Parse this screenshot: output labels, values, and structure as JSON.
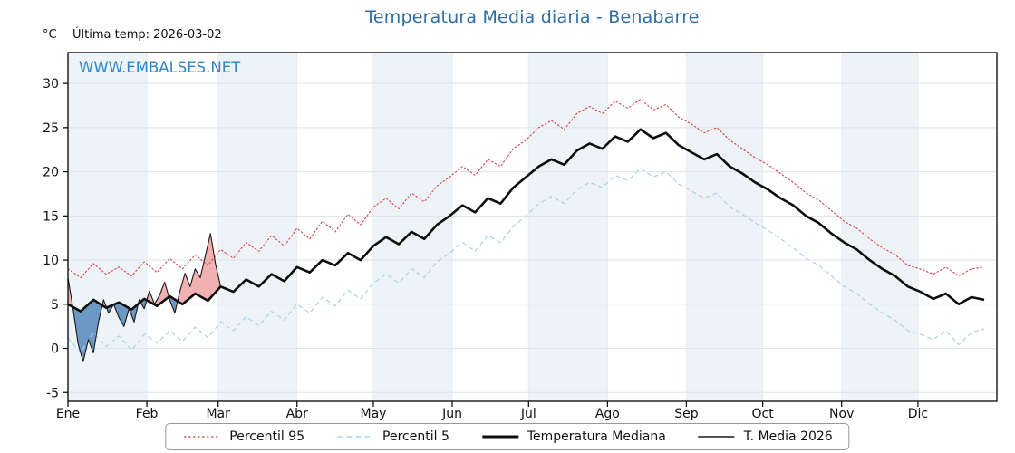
{
  "chart_data": {
    "type": "line",
    "title": "Temperatura Media diaria - Benabarre",
    "ylabel": "°C",
    "xlabel": "",
    "annotation": "Última temp: 2026-03-02",
    "watermark": "WWW.EMBALSES.NET",
    "grid": true,
    "legend_position": "bottom",
    "categories": [
      "Ene",
      "Feb",
      "Mar",
      "Abr",
      "May",
      "Jun",
      "Jul",
      "Ago",
      "Sep",
      "Oct",
      "Nov",
      "Dic"
    ],
    "month_start_days": [
      0,
      31,
      59,
      90,
      120,
      151,
      181,
      212,
      243,
      273,
      304,
      334
    ],
    "yticks": [
      -5,
      0,
      5,
      10,
      15,
      20,
      25,
      30
    ],
    "ylim": [
      -6,
      33.5
    ],
    "xlim": [
      0,
      365
    ],
    "sample_days": [
      0,
      5,
      10,
      15,
      20,
      25,
      30,
      35,
      40,
      45,
      50,
      55,
      60,
      65,
      70,
      75,
      80,
      85,
      90,
      95,
      100,
      105,
      110,
      115,
      120,
      125,
      130,
      135,
      140,
      145,
      150,
      155,
      160,
      165,
      170,
      175,
      180,
      185,
      190,
      195,
      200,
      205,
      210,
      215,
      220,
      225,
      230,
      235,
      240,
      245,
      250,
      255,
      260,
      265,
      270,
      275,
      280,
      285,
      290,
      295,
      300,
      305,
      310,
      315,
      320,
      325,
      330,
      335,
      340,
      345,
      350,
      355,
      360
    ],
    "series": [
      {
        "name": "Percentil 95",
        "style": "dotted",
        "color": "#d64545",
        "width": 1.1,
        "values": [
          9,
          8,
          9.6,
          8.4,
          9.2,
          8.2,
          9.8,
          8.6,
          10.2,
          9,
          10.6,
          9.4,
          11.2,
          10.2,
          12,
          11,
          12.8,
          11.6,
          13.6,
          12.4,
          14.4,
          13.2,
          15.2,
          14,
          16,
          17,
          15.8,
          17.6,
          16.6,
          18.4,
          19.4,
          20.6,
          19.6,
          21.4,
          20.6,
          22.6,
          23.6,
          25,
          25.8,
          24.8,
          26.6,
          27.4,
          26.6,
          28,
          27.2,
          28.2,
          27,
          27.6,
          26.2,
          25.4,
          24.4,
          25,
          23.6,
          22.6,
          21.6,
          20.8,
          19.8,
          18.8,
          17.6,
          16.8,
          15.6,
          14.4,
          13.6,
          12.4,
          11.4,
          10.6,
          9.4,
          9,
          8.4,
          9.2,
          8.2,
          9,
          9.2
        ]
      },
      {
        "name": "Percentil 5",
        "style": "dashed",
        "color": "#a9d2e6",
        "width": 1.2,
        "values": [
          1.2,
          -0.5,
          1.8,
          0.2,
          1.4,
          -0.2,
          1.6,
          0.6,
          2,
          0.8,
          2.4,
          1.2,
          3,
          2,
          3.6,
          2.6,
          4.2,
          3.2,
          5,
          4,
          5.8,
          4.8,
          6.6,
          5.6,
          7.4,
          8.4,
          7.4,
          9,
          8,
          9.8,
          10.8,
          12,
          11,
          12.8,
          12,
          13.8,
          15,
          16.4,
          17.2,
          16.4,
          18,
          18.8,
          18.2,
          19.6,
          19,
          20.4,
          19.4,
          20,
          18.6,
          17.8,
          17,
          17.6,
          16,
          15.2,
          14.2,
          13.4,
          12.4,
          11.4,
          10.2,
          9.4,
          8.2,
          7,
          6.2,
          5,
          4,
          3.2,
          2,
          1.6,
          1,
          2,
          0.4,
          1.8,
          2.2
        ]
      },
      {
        "name": "Temperatura Mediana",
        "style": "solid",
        "color": "#0d0d0d",
        "width": 2.6,
        "values": [
          5,
          4.2,
          5.5,
          4.6,
          5.2,
          4.4,
          5.6,
          4.8,
          5.9,
          5,
          6.2,
          5.4,
          7,
          6.4,
          7.8,
          7,
          8.4,
          7.6,
          9.2,
          8.6,
          10,
          9.4,
          10.8,
          10,
          11.6,
          12.6,
          11.8,
          13.2,
          12.4,
          14,
          15,
          16.2,
          15.4,
          17,
          16.4,
          18.2,
          19.4,
          20.6,
          21.4,
          20.8,
          22.4,
          23.2,
          22.6,
          24,
          23.4,
          24.8,
          23.8,
          24.4,
          23,
          22.2,
          21.4,
          22,
          20.6,
          19.8,
          18.8,
          18,
          17,
          16.2,
          15,
          14.2,
          13,
          12,
          11.2,
          10,
          9,
          8.2,
          7,
          6.4,
          5.6,
          6.2,
          5,
          5.8,
          5.5
        ]
      },
      {
        "name": "T. Media 2026",
        "style": "solid",
        "color": "#1a1a1a",
        "width": 1.1,
        "x": [
          0,
          2,
          4,
          6,
          8,
          10,
          12,
          14,
          16,
          18,
          20,
          22,
          24,
          26,
          28,
          30,
          32,
          34,
          36,
          38,
          40,
          42,
          44,
          46,
          48,
          50,
          52,
          54,
          56,
          58,
          60
        ],
        "values": [
          8,
          4.5,
          0.5,
          -1.5,
          1,
          -0.5,
          3,
          5.5,
          4,
          5,
          3.5,
          2.5,
          4.5,
          3,
          5.5,
          4.5,
          6.5,
          5,
          6,
          7.5,
          5.5,
          4,
          6.5,
          8.5,
          7,
          9,
          8,
          10.5,
          13,
          9.5,
          7
        ]
      }
    ],
    "fill_between": {
      "series_a": "T. Media 2026",
      "series_b": "Temperatura Mediana",
      "above_fill": "#f0a8a8",
      "above_edge": "#c04040",
      "below_fill": "#5d8fbd",
      "below_edge": "#33608c"
    },
    "colors": {
      "title": "#2e6da4",
      "watermark": "#2e86c5",
      "band": "#eef3f8",
      "grid": "#dde3ea",
      "grid_v": "#e7ecf2",
      "axis": "#000000",
      "tick_text": "#111111"
    }
  }
}
